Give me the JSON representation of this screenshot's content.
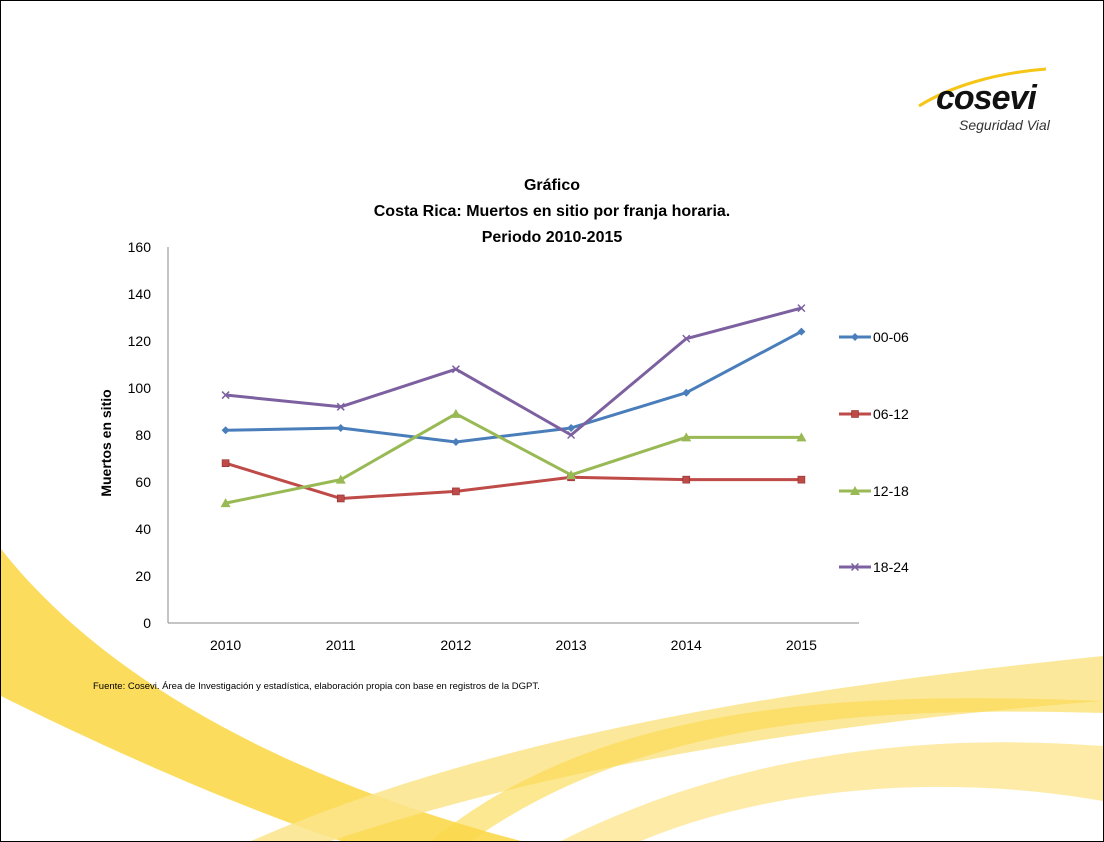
{
  "logo": {
    "name": "cosevi",
    "tagline": "Seguridad Vial"
  },
  "source_note": "Fuente: Cosevi. Área de Investigación y estadística, elaboración propia con base en registros de la DGPT.",
  "colors": {
    "swoosh": "#FBD84A",
    "swoosh_light": "#FCE79A"
  },
  "chart_data": {
    "type": "line",
    "title_lines": [
      "Gráfico",
      "Costa Rica: Muertos en sitio por franja horaria.",
      "Periodo 2010-2015"
    ],
    "xlabel": "",
    "ylabel": "Muertos en sitio",
    "categories": [
      "2010",
      "2011",
      "2012",
      "2013",
      "2014",
      "2015"
    ],
    "ylim": [
      0,
      160
    ],
    "yticks": [
      0,
      20,
      40,
      60,
      80,
      100,
      120,
      140,
      160
    ],
    "grid": false,
    "legend_position": "right",
    "series": [
      {
        "name": "00-06",
        "values": [
          82,
          83,
          77,
          83,
          98,
          124
        ],
        "color": "#4A7EBB",
        "marker": "diamond"
      },
      {
        "name": "06-12",
        "values": [
          68,
          53,
          56,
          62,
          61,
          61
        ],
        "color": "#BE4B48",
        "marker": "square"
      },
      {
        "name": "12-18",
        "values": [
          51,
          61,
          89,
          63,
          79,
          79
        ],
        "color": "#98B954",
        "marker": "triangle"
      },
      {
        "name": "18-24",
        "values": [
          97,
          92,
          108,
          80,
          121,
          134
        ],
        "color": "#7D60A0",
        "marker": "x"
      }
    ]
  }
}
